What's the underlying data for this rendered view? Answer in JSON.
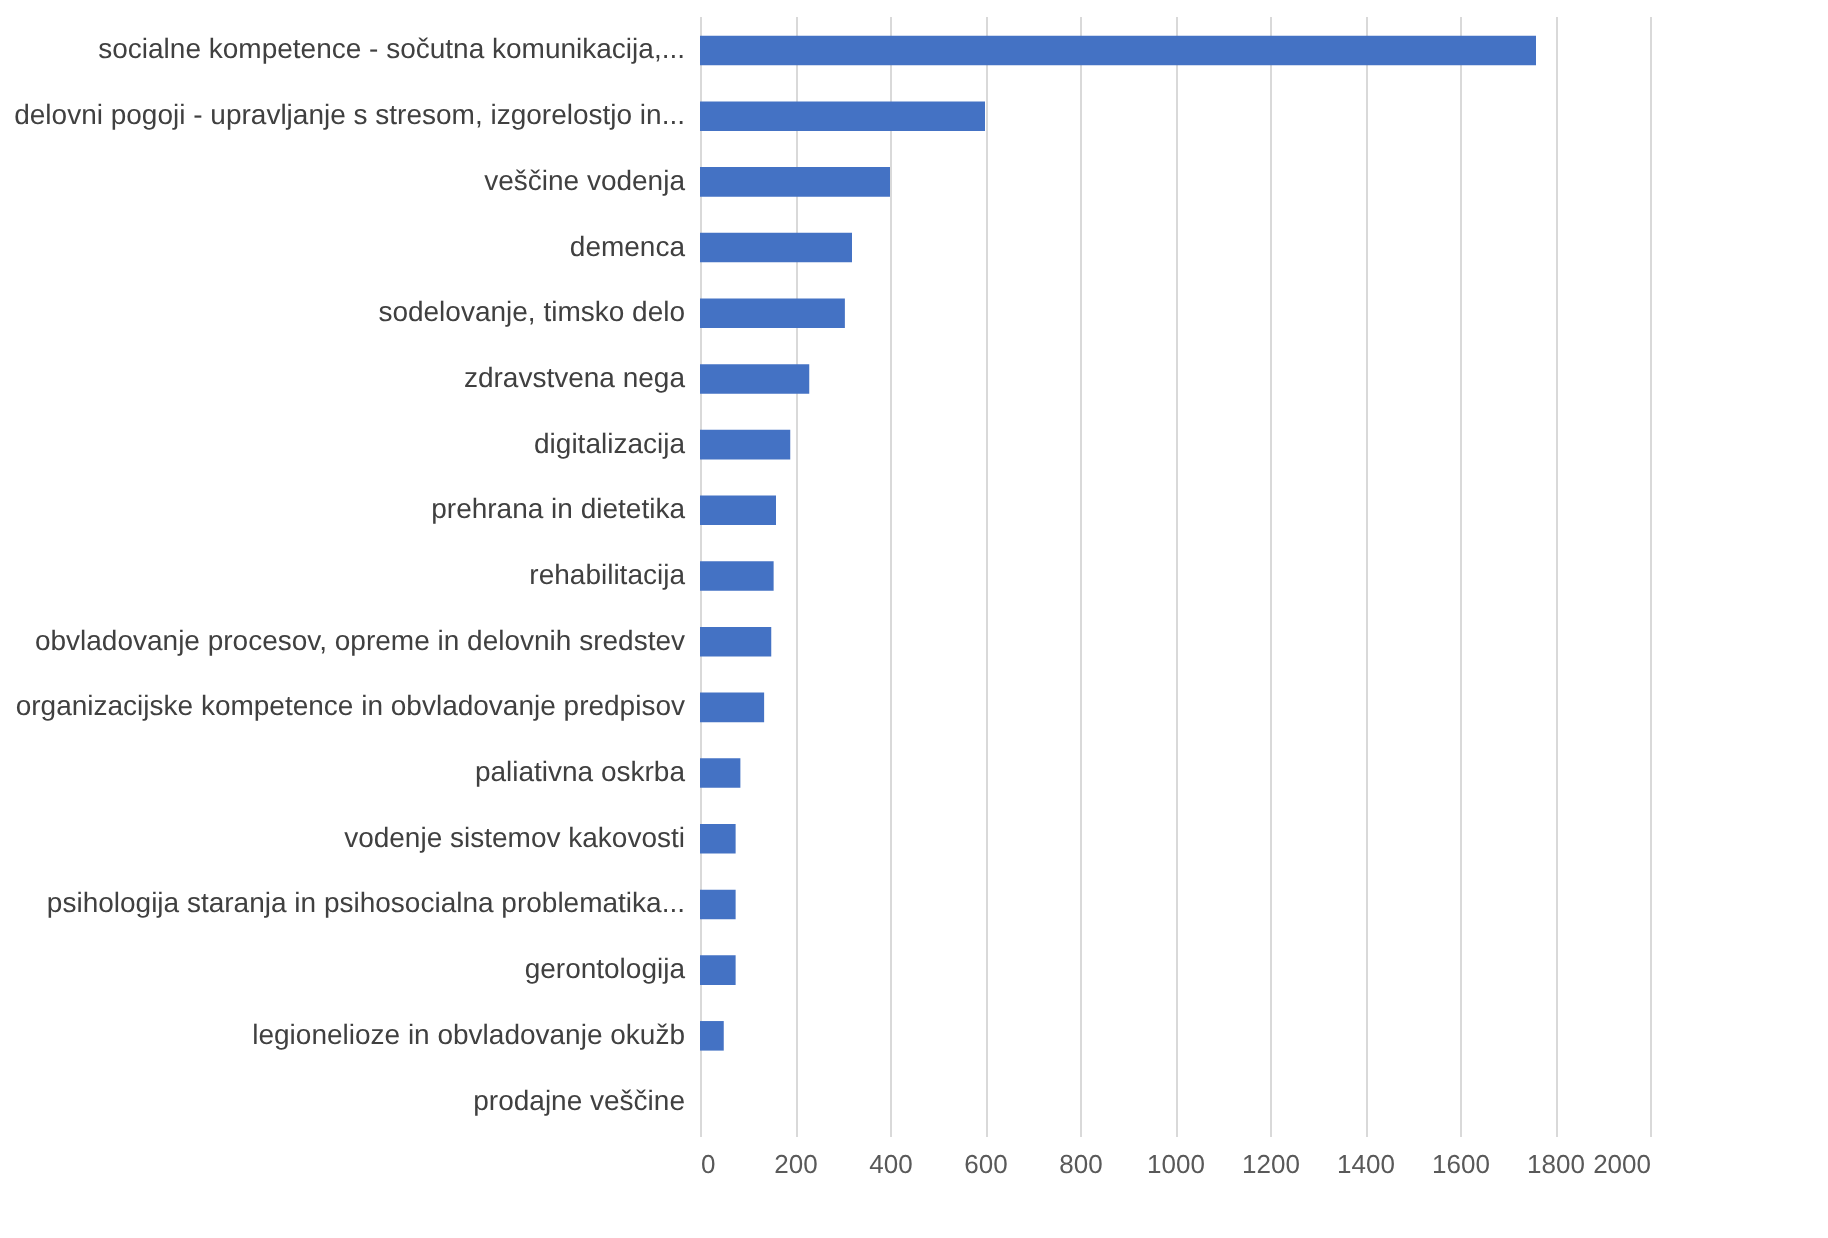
{
  "chart_data": {
    "type": "bar",
    "orientation": "horizontal",
    "categories": [
      "socialne kompetence - sočutna komunikacija,...",
      "delovni pogoji - upravljanje s stresom, izgorelostjo in...",
      "veščine vodenja",
      "demenca",
      "sodelovanje, timsko delo",
      "zdravstvena nega",
      "digitalizacija",
      "prehrana in dietetika",
      "rehabilitacija",
      "obvladovanje procesov, opreme in delovnih sredstev",
      "organizacijske kompetence in obvladovanje predpisov",
      "paliativna oskrba",
      "vodenje sistemov kakovosti",
      "psihologija staranja in psihosocialna problematika...",
      "gerontologija",
      "legionelioze in obvladovanje okužb",
      "prodajne veščine"
    ],
    "values": [
      1760,
      600,
      400,
      320,
      305,
      230,
      190,
      160,
      155,
      150,
      135,
      85,
      75,
      75,
      75,
      50,
      0
    ],
    "color": "#4472c4",
    "xlim": [
      0,
      2000
    ],
    "xticks": [
      0,
      200,
      400,
      600,
      800,
      1000,
      1200,
      1400,
      1600,
      1800,
      2000
    ],
    "grid": "x"
  }
}
